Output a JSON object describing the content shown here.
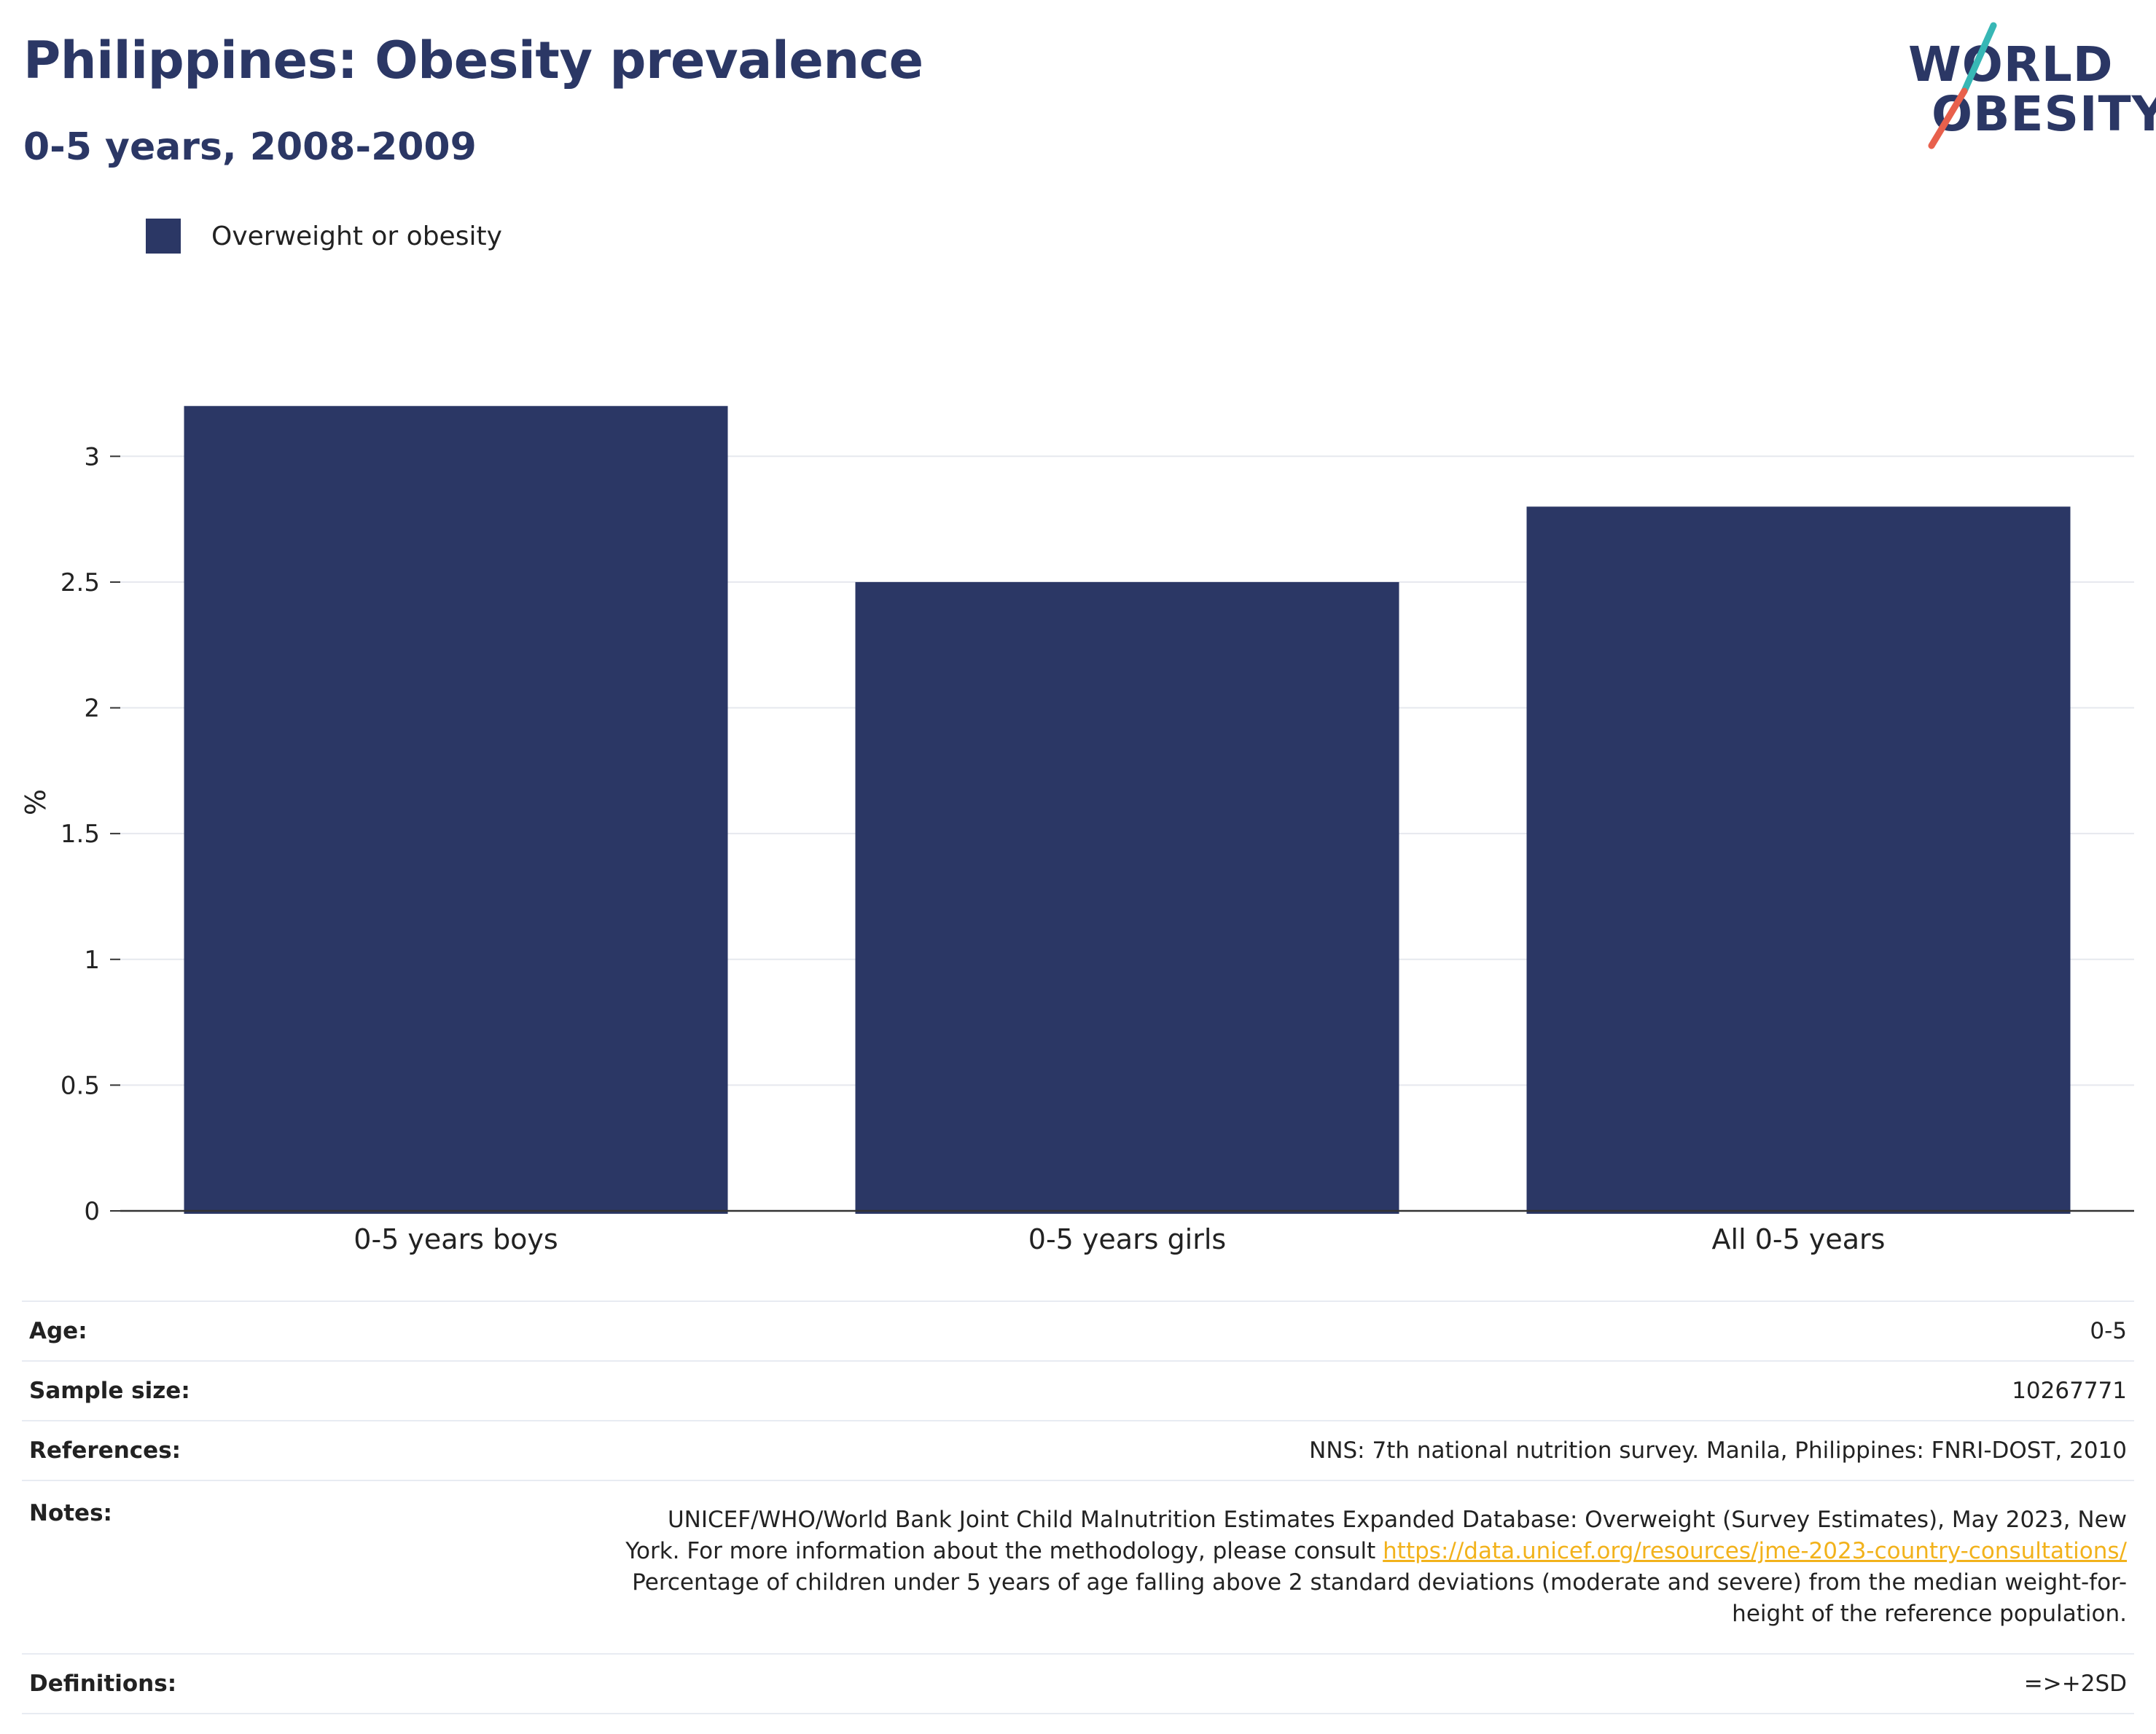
{
  "header": {
    "title": "Philippines: Obesity prevalence",
    "subtitle": "0-5 years, 2008-2009"
  },
  "logo": {
    "line1": "WORLD",
    "line2": "OBESITY",
    "colors": {
      "text": "#2b3765",
      "slash_top": "#37b7b5",
      "slash_bottom": "#e8604c"
    }
  },
  "chart_data": {
    "type": "bar",
    "categories": [
      "0-5 years boys",
      "0-5 years girls",
      "All 0-5 years"
    ],
    "series": [
      {
        "name": "Overweight or obesity",
        "values": [
          3.2,
          2.5,
          2.8
        ],
        "color": "#2b3765"
      }
    ],
    "ylabel": "%",
    "ylim": [
      0,
      3.25
    ],
    "yticks": [
      0,
      0.5,
      1,
      1.5,
      2,
      2.5,
      3
    ],
    "ytick_labels": [
      "0",
      "0.5",
      "1",
      "1.5",
      "2",
      "2.5",
      "3"
    ],
    "grid": true,
    "legend_position": "top-left"
  },
  "info": {
    "age": {
      "label": "Age:",
      "value": "0-5"
    },
    "sample_size": {
      "label": "Sample size:",
      "value": "10267771"
    },
    "references": {
      "label": "References:",
      "value": "NNS: 7th national nutrition survey. Manila, Philippines: FNRI-DOST, 2010"
    },
    "notes": {
      "label": "Notes:",
      "line1": "UNICEF/WHO/World Bank Joint Child Malnutrition Estimates Expanded Database: Overweight (Survey Estimates), May 2023, New",
      "line2_prefix": "York. For more information about the methodology, please consult ",
      "link": "https://data.unicef.org/resources/jme-2023-country-consultations/",
      "line3": "Percentage of children under 5 years of age falling above 2 standard deviations (moderate and severe) from the median weight-for-",
      "line4": "height of the reference population."
    },
    "definitions": {
      "label": "Definitions:",
      "value": "=>+2SD"
    }
  }
}
